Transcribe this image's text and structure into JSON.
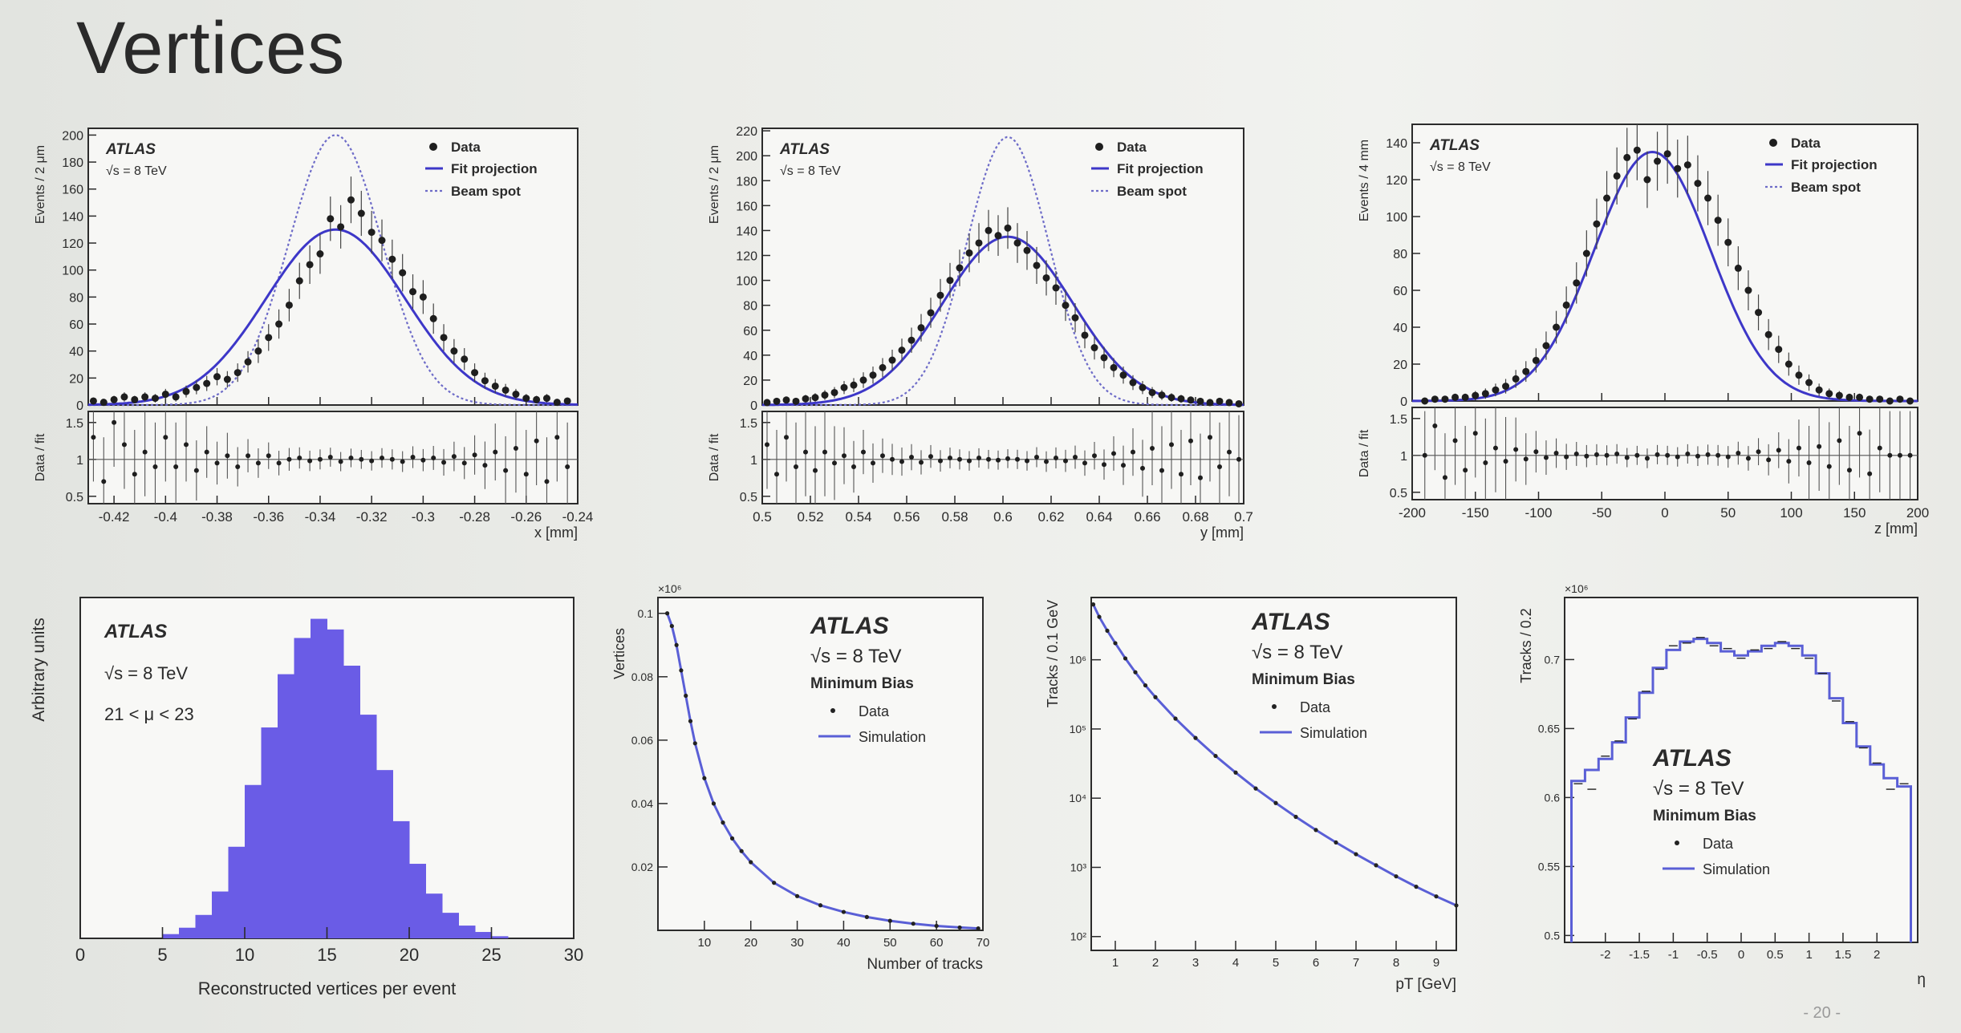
{
  "slide": {
    "title": "Vertices",
    "footer": "- 20 -"
  },
  "chart_data": [
    {
      "id": "x-profile",
      "type": "scatter",
      "texts": [
        "ATLAS",
        "√s = 8 TeV"
      ],
      "legend": [
        "Data",
        "Fit projection",
        "Beam spot"
      ],
      "legend_placement": "top-right",
      "ylabel": "Events / 2 μm",
      "xlabel": "x [mm]",
      "ratio_ylabel": "Data / fit",
      "xlim": [
        -0.43,
        -0.24
      ],
      "ylim": [
        0,
        205
      ],
      "xticks": [
        -0.42,
        -0.4,
        -0.38,
        -0.36,
        -0.34,
        -0.32,
        -0.3,
        -0.28,
        -0.26,
        -0.24
      ],
      "xticklabels": [
        "-0.42",
        "-0.4",
        "-0.38",
        "-0.36",
        "-0.34",
        "-0.32",
        "-0.3",
        "-0.28",
        "-0.26",
        "-0.24"
      ],
      "yticks": [
        0,
        20,
        40,
        60,
        80,
        100,
        120,
        140,
        160,
        180,
        200
      ],
      "ratio_ylim": [
        0.4,
        1.65
      ],
      "ratio_yticks": [
        0.5,
        1,
        1.5
      ],
      "fit": {
        "peak": 130,
        "mean": -0.334,
        "sigma": 0.027
      },
      "beam_spot": {
        "peak": 200,
        "mean": -0.334,
        "sigma": 0.018
      },
      "data_points": {
        "x": [
          -0.428,
          -0.424,
          -0.42,
          -0.416,
          -0.412,
          -0.408,
          -0.404,
          -0.4,
          -0.396,
          -0.392,
          -0.388,
          -0.384,
          -0.38,
          -0.376,
          -0.372,
          -0.368,
          -0.364,
          -0.36,
          -0.356,
          -0.352,
          -0.348,
          -0.344,
          -0.34,
          -0.336,
          -0.332,
          -0.328,
          -0.324,
          -0.32,
          -0.316,
          -0.312,
          -0.308,
          -0.304,
          -0.3,
          -0.296,
          -0.292,
          -0.288,
          -0.284,
          -0.28,
          -0.276,
          -0.272,
          -0.268,
          -0.264,
          -0.26,
          -0.256,
          -0.252,
          -0.248,
          -0.244
        ],
        "y": [
          3,
          2,
          4,
          6,
          4,
          6,
          5,
          8,
          6,
          10,
          13,
          16,
          21,
          19,
          24,
          32,
          40,
          50,
          60,
          74,
          92,
          104,
          112,
          138,
          132,
          152,
          142,
          128,
          122,
          108,
          98,
          84,
          80,
          64,
          50,
          40,
          34,
          24,
          18,
          14,
          11,
          8,
          5,
          4,
          5,
          2,
          3
        ],
        "ratio": [
          1.3,
          0.7,
          1.5,
          1.2,
          0.8,
          1.1,
          0.9,
          1.3,
          0.9,
          1.2,
          0.85,
          1.1,
          0.95,
          1.05,
          0.9,
          1.05,
          0.95,
          1.05,
          0.95,
          1.0,
          1.02,
          0.98,
          1.0,
          1.03,
          0.97,
          1.02,
          1.0,
          0.98,
          1.02,
          1.0,
          0.97,
          1.03,
          0.99,
          1.02,
          0.96,
          1.04,
          0.95,
          1.06,
          0.92,
          1.1,
          0.85,
          1.15,
          0.8,
          1.25,
          0.7,
          1.3,
          0.9
        ]
      }
    },
    {
      "id": "y-profile",
      "type": "scatter",
      "texts": [
        "ATLAS",
        "√s = 8 TeV"
      ],
      "legend": [
        "Data",
        "Fit projection",
        "Beam spot"
      ],
      "legend_placement": "top-right",
      "ylabel": "Events / 2 μm",
      "xlabel": "y [mm]",
      "ratio_ylabel": "Data / fit",
      "xlim": [
        0.5,
        0.7
      ],
      "ylim": [
        0,
        222
      ],
      "xticks": [
        0.5,
        0.52,
        0.54,
        0.56,
        0.58,
        0.6,
        0.62,
        0.64,
        0.66,
        0.68,
        0.7
      ],
      "xticklabels": [
        "0.5",
        "0.52",
        "0.54",
        "0.56",
        "0.58",
        "0.6",
        "0.62",
        "0.64",
        "0.66",
        "0.68",
        "0.7"
      ],
      "yticks": [
        0,
        20,
        40,
        60,
        80,
        100,
        120,
        140,
        160,
        180,
        200,
        220
      ],
      "ratio_ylim": [
        0.4,
        1.65
      ],
      "ratio_yticks": [
        0.5,
        1,
        1.5
      ],
      "fit": {
        "peak": 135,
        "mean": 0.602,
        "sigma": 0.027
      },
      "beam_spot": {
        "peak": 215,
        "mean": 0.602,
        "sigma": 0.017
      },
      "data_points": {
        "x": [
          0.502,
          0.506,
          0.51,
          0.514,
          0.518,
          0.522,
          0.526,
          0.53,
          0.534,
          0.538,
          0.542,
          0.546,
          0.55,
          0.554,
          0.558,
          0.562,
          0.566,
          0.57,
          0.574,
          0.578,
          0.582,
          0.586,
          0.59,
          0.594,
          0.598,
          0.602,
          0.606,
          0.61,
          0.614,
          0.618,
          0.622,
          0.626,
          0.63,
          0.634,
          0.638,
          0.642,
          0.646,
          0.65,
          0.654,
          0.658,
          0.662,
          0.666,
          0.67,
          0.674,
          0.678,
          0.682,
          0.686,
          0.69,
          0.694,
          0.698
        ],
        "y": [
          2,
          3,
          4,
          3,
          5,
          6,
          8,
          10,
          14,
          16,
          20,
          24,
          30,
          36,
          44,
          52,
          62,
          74,
          88,
          100,
          110,
          122,
          130,
          140,
          136,
          142,
          130,
          124,
          112,
          102,
          94,
          80,
          70,
          56,
          46,
          38,
          30,
          24,
          18,
          14,
          10,
          8,
          6,
          5,
          4,
          3,
          2,
          3,
          2,
          1
        ],
        "ratio": [
          1.2,
          0.8,
          1.3,
          0.9,
          1.1,
          0.85,
          1.1,
          0.95,
          1.05,
          0.9,
          1.1,
          0.95,
          1.05,
          1.0,
          0.97,
          1.03,
          0.96,
          1.04,
          0.98,
          1.02,
          1.0,
          0.98,
          1.02,
          1.0,
          0.99,
          1.01,
          1.0,
          0.98,
          1.03,
          0.97,
          1.02,
          0.98,
          1.03,
          0.95,
          1.05,
          0.93,
          1.08,
          0.92,
          1.1,
          0.88,
          1.15,
          0.85,
          1.2,
          0.8,
          1.25,
          0.75,
          1.3,
          0.9,
          1.1,
          1.0
        ]
      }
    },
    {
      "id": "z-profile",
      "type": "scatter",
      "texts": [
        "ATLAS",
        "√s = 8 TeV"
      ],
      "legend": [
        "Data",
        "Fit projection",
        "Beam spot"
      ],
      "legend_placement": "top-right",
      "ylabel": "Events / 4 mm",
      "xlabel": "z [mm]",
      "ratio_ylabel": "Data / fit",
      "xlim": [
        -200,
        200
      ],
      "ylim": [
        0,
        150
      ],
      "xticks": [
        -200,
        -150,
        -100,
        -50,
        0,
        50,
        100,
        150,
        200
      ],
      "xticklabels": [
        "-200",
        "-150",
        "-100",
        "-50",
        "0",
        "50",
        "100",
        "150",
        "200"
      ],
      "yticks": [
        0,
        20,
        40,
        60,
        80,
        100,
        120,
        140
      ],
      "ratio_ylim": [
        0.4,
        1.65
      ],
      "ratio_yticks": [
        0.5,
        1,
        1.5
      ],
      "fit": {
        "peak": 135,
        "mean": -10,
        "sigma": 46
      },
      "beam_spot": {
        "peak": 135,
        "mean": -10,
        "sigma": 46
      },
      "data_points": {
        "x": [
          -190,
          -182,
          -174,
          -166,
          -158,
          -150,
          -142,
          -134,
          -126,
          -118,
          -110,
          -102,
          -94,
          -86,
          -78,
          -70,
          -62,
          -54,
          -46,
          -38,
          -30,
          -22,
          -14,
          -6,
          2,
          10,
          18,
          26,
          34,
          42,
          50,
          58,
          66,
          74,
          82,
          90,
          98,
          106,
          114,
          122,
          130,
          138,
          146,
          154,
          162,
          170,
          178,
          186,
          194
        ],
        "y": [
          0,
          1,
          1,
          2,
          2,
          3,
          4,
          6,
          8,
          12,
          16,
          22,
          30,
          40,
          52,
          64,
          80,
          96,
          110,
          122,
          132,
          136,
          120,
          130,
          134,
          126,
          128,
          118,
          110,
          98,
          86,
          72,
          60,
          48,
          36,
          28,
          20,
          14,
          10,
          6,
          4,
          3,
          2,
          2,
          1,
          1,
          0,
          1,
          0
        ],
        "ratio": [
          1.0,
          1.4,
          0.7,
          1.2,
          0.8,
          1.3,
          0.9,
          1.1,
          0.92,
          1.08,
          0.95,
          1.05,
          0.97,
          1.03,
          0.98,
          1.02,
          0.99,
          1.01,
          1.0,
          1.02,
          0.97,
          1.0,
          0.96,
          1.01,
          1.0,
          0.98,
          1.02,
          0.99,
          1.01,
          1.0,
          0.98,
          1.03,
          0.96,
          1.05,
          0.94,
          1.07,
          0.92,
          1.1,
          0.9,
          1.12,
          0.85,
          1.2,
          0.8,
          1.3,
          0.75,
          1.1,
          1.0,
          1.0,
          1.0
        ]
      }
    },
    {
      "id": "vertices-per-event",
      "type": "bar",
      "texts": [
        "ATLAS",
        "√s = 8 TeV",
        "21 < μ < 23"
      ],
      "ylabel": "Arbitrary units",
      "xlabel": "Reconstructed vertices per event",
      "xlim": [
        0,
        30
      ],
      "xticks": [
        0,
        5,
        10,
        15,
        20,
        25,
        30
      ],
      "xticklabels": [
        "0",
        "5",
        "10",
        "15",
        "20",
        "25",
        "30"
      ],
      "ylim": [
        0,
        0.16
      ],
      "fill_color": "#6a5ce6",
      "bin_edges": [
        5,
        6,
        7,
        8,
        9,
        10,
        11,
        12,
        13,
        14,
        15,
        16,
        17,
        18,
        19,
        20,
        21,
        22,
        23,
        24,
        25,
        26
      ],
      "values": [
        0.002,
        0.005,
        0.011,
        0.022,
        0.043,
        0.072,
        0.099,
        0.124,
        0.141,
        0.15,
        0.145,
        0.128,
        0.105,
        0.079,
        0.055,
        0.035,
        0.021,
        0.012,
        0.006,
        0.003,
        0.001
      ]
    },
    {
      "id": "number-of-tracks",
      "type": "line",
      "texts": [
        "ATLAS",
        "√s = 8 TeV",
        "Minimum Bias"
      ],
      "legend": [
        "Data",
        "Simulation"
      ],
      "legend_placement": "top-right",
      "ylabel": "Vertices",
      "xlabel": "Number of tracks",
      "scale_label": "×10⁶",
      "xlim": [
        0,
        70
      ],
      "xticks": [
        10,
        20,
        30,
        40,
        50,
        60,
        70
      ],
      "xticklabels": [
        "10",
        "20",
        "30",
        "40",
        "50",
        "60",
        "70"
      ],
      "ylim": [
        0,
        0.105
      ],
      "yticks": [
        0.02,
        0.04,
        0.06,
        0.08,
        0.1
      ],
      "yticklabels": [
        "0.02",
        "0.04",
        "0.06",
        "0.08",
        "0.1"
      ],
      "x": [
        2,
        3,
        4,
        5,
        6,
        7,
        8,
        10,
        12,
        14,
        16,
        18,
        20,
        25,
        30,
        35,
        40,
        45,
        50,
        55,
        60,
        65,
        69
      ],
      "values": [
        0.1,
        0.096,
        0.09,
        0.082,
        0.074,
        0.066,
        0.059,
        0.048,
        0.04,
        0.034,
        0.029,
        0.025,
        0.0215,
        0.015,
        0.0108,
        0.0079,
        0.0058,
        0.0042,
        0.003,
        0.0021,
        0.0014,
        0.0009,
        0.0006
      ]
    },
    {
      "id": "track-pt",
      "type": "line",
      "texts": [
        "ATLAS",
        "√s = 8 TeV",
        "Minimum Bias"
      ],
      "legend": [
        "Data",
        "Simulation"
      ],
      "legend_placement": "top-right",
      "ylabel": "Tracks / 0.1 GeV",
      "xlabel": "pT [GeV]",
      "y_scale": "log",
      "xlim": [
        0.4,
        9.5
      ],
      "xticks": [
        1,
        2,
        3,
        4,
        5,
        6,
        7,
        8,
        9
      ],
      "xticklabels": [
        "1",
        "2",
        "3",
        "4",
        "5",
        "6",
        "7",
        "8",
        "9"
      ],
      "ylim_log10": [
        1.8,
        6.9
      ],
      "ytick_exponents": [
        2,
        3,
        4,
        5,
        6
      ],
      "yticklabels": [
        "10²",
        "10³",
        "10⁴",
        "10⁵",
        "10⁶"
      ],
      "x": [
        0.45,
        0.6,
        0.8,
        1.0,
        1.25,
        1.5,
        1.75,
        2.0,
        2.5,
        3.0,
        3.5,
        4.0,
        4.5,
        5.0,
        5.5,
        6.0,
        6.5,
        7.0,
        7.5,
        8.0,
        8.5,
        9.0,
        9.5
      ],
      "log10_values": [
        6.8,
        6.62,
        6.42,
        6.24,
        6.02,
        5.82,
        5.63,
        5.46,
        5.15,
        4.87,
        4.61,
        4.37,
        4.14,
        3.93,
        3.73,
        3.54,
        3.36,
        3.19,
        3.03,
        2.87,
        2.72,
        2.58,
        2.45
      ]
    },
    {
      "id": "track-eta",
      "type": "bar",
      "texts": [
        "ATLAS",
        "√s = 8 TeV",
        "Minimum Bias"
      ],
      "legend": [
        "Data",
        "Simulation"
      ],
      "legend_placement": "center",
      "ylabel": "Tracks / 0.2",
      "xlabel": "η",
      "scale_label": "×10⁶",
      "xlim": [
        -2.6,
        2.6
      ],
      "xticks": [
        -2,
        -1.5,
        -1,
        -0.5,
        0,
        0.5,
        1,
        1.5,
        2
      ],
      "xticklabels": [
        "-2",
        "-1.5",
        "-1",
        "-0.5",
        "0",
        "0.5",
        "1",
        "1.5",
        "2"
      ],
      "ylim": [
        0.495,
        0.745
      ],
      "yticks": [
        0.5,
        0.55,
        0.6,
        0.65,
        0.7
      ],
      "yticklabels": [
        "0.5",
        "0.55",
        "0.6",
        "0.65",
        "0.7"
      ],
      "bin_edges": [
        -2.5,
        -2.3,
        -2.1,
        -1.9,
        -1.7,
        -1.5,
        -1.3,
        -1.1,
        -0.9,
        -0.7,
        -0.5,
        -0.3,
        -0.1,
        0.1,
        0.3,
        0.5,
        0.7,
        0.9,
        1.1,
        1.3,
        1.5,
        1.7,
        1.9,
        2.1,
        2.3,
        2.5
      ],
      "values": [
        0.612,
        0.62,
        0.628,
        0.64,
        0.658,
        0.676,
        0.694,
        0.707,
        0.713,
        0.715,
        0.712,
        0.706,
        0.703,
        0.706,
        0.71,
        0.712,
        0.71,
        0.703,
        0.69,
        0.672,
        0.654,
        0.637,
        0.624,
        0.614,
        0.608
      ],
      "data_values": [
        0.61,
        0.606,
        0.63,
        0.641,
        0.657,
        0.677,
        0.693,
        0.71,
        0.712,
        0.716,
        0.71,
        0.708,
        0.701,
        0.707,
        0.708,
        0.713,
        0.708,
        0.701,
        0.69,
        0.67,
        0.655,
        0.636,
        0.625,
        0.606,
        0.61
      ]
    }
  ]
}
